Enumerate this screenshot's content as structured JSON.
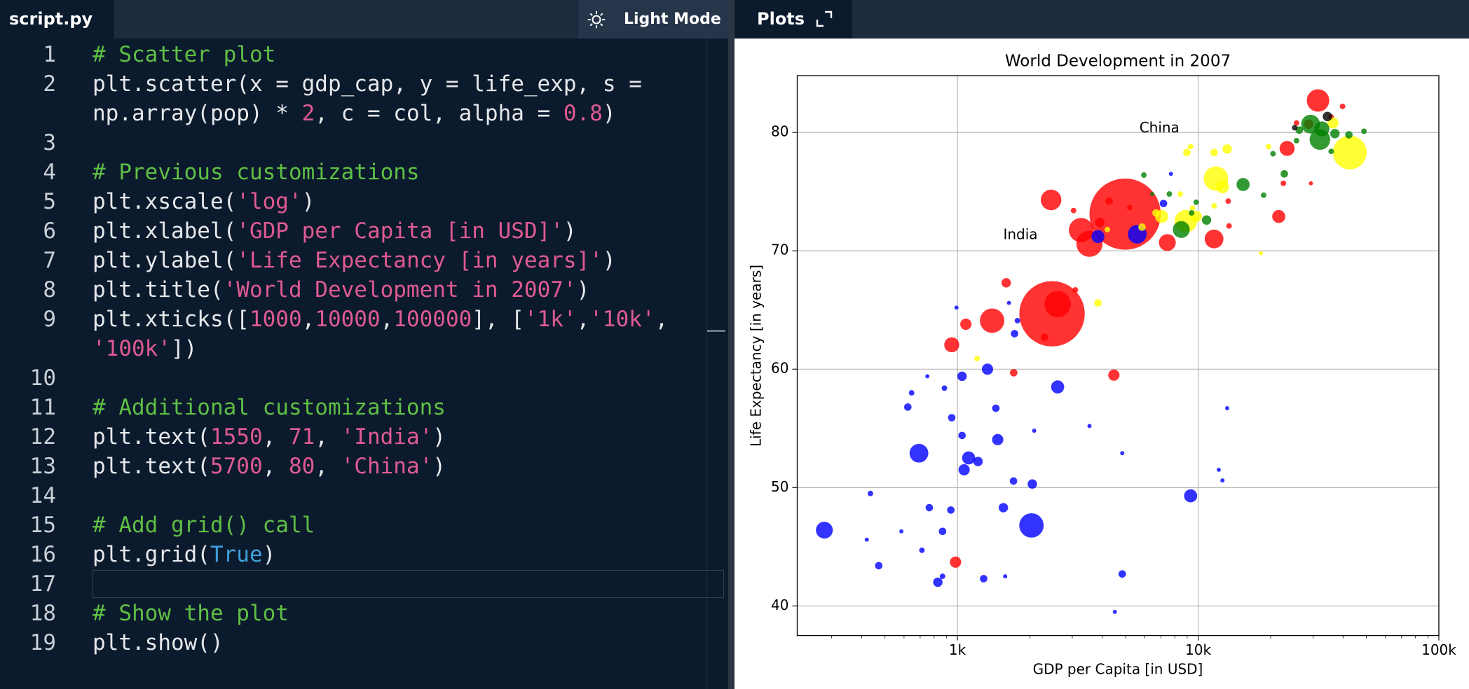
{
  "editor": {
    "tab": "script.py",
    "mode_button": "Light Mode",
    "current_line": 17,
    "token_colors": {
      "plain": "#e6e8eb",
      "comment": "#5fbf45",
      "number": "#de5b93",
      "string": "#de5b93",
      "keyword": "#3f9fdc"
    },
    "lines": [
      {
        "number": 1,
        "rows": [
          [
            {
              "text": "# Scatter plot",
              "kind": "comment"
            }
          ]
        ]
      },
      {
        "number": 2,
        "rows": [
          [
            {
              "text": "plt.scatter(x = gdp_cap, y = life_exp, s =",
              "kind": "plain"
            }
          ],
          [
            {
              "text": "np.array(pop) * ",
              "kind": "plain"
            },
            {
              "text": "2",
              "kind": "number"
            },
            {
              "text": ", c = col, alpha = ",
              "kind": "plain"
            },
            {
              "text": "0.8",
              "kind": "number"
            },
            {
              "text": ")",
              "kind": "plain"
            }
          ]
        ]
      },
      {
        "number": 3,
        "rows": [
          []
        ]
      },
      {
        "number": 4,
        "rows": [
          [
            {
              "text": "# Previous customizations",
              "kind": "comment"
            }
          ]
        ]
      },
      {
        "number": 5,
        "rows": [
          [
            {
              "text": "plt.xscale(",
              "kind": "plain"
            },
            {
              "text": "'log'",
              "kind": "string"
            },
            {
              "text": ")",
              "kind": "plain"
            }
          ]
        ]
      },
      {
        "number": 6,
        "rows": [
          [
            {
              "text": "plt.xlabel(",
              "kind": "plain"
            },
            {
              "text": "'GDP per Capita [in USD]'",
              "kind": "string"
            },
            {
              "text": ")",
              "kind": "plain"
            }
          ]
        ]
      },
      {
        "number": 7,
        "rows": [
          [
            {
              "text": "plt.ylabel(",
              "kind": "plain"
            },
            {
              "text": "'Life Expectancy [in years]'",
              "kind": "string"
            },
            {
              "text": ")",
              "kind": "plain"
            }
          ]
        ]
      },
      {
        "number": 8,
        "rows": [
          [
            {
              "text": "plt.title(",
              "kind": "plain"
            },
            {
              "text": "'World Development in 2007'",
              "kind": "string"
            },
            {
              "text": ")",
              "kind": "plain"
            }
          ]
        ]
      },
      {
        "number": 9,
        "rows": [
          [
            {
              "text": "plt.xticks([",
              "kind": "plain"
            },
            {
              "text": "1000",
              "kind": "number"
            },
            {
              "text": ",",
              "kind": "plain"
            },
            {
              "text": "10000",
              "kind": "number"
            },
            {
              "text": ",",
              "kind": "plain"
            },
            {
              "text": "100000",
              "kind": "number"
            },
            {
              "text": "], [",
              "kind": "plain"
            },
            {
              "text": "'1k'",
              "kind": "string"
            },
            {
              "text": ",",
              "kind": "plain"
            },
            {
              "text": "'10k'",
              "kind": "string"
            },
            {
              "text": ",",
              "kind": "plain"
            }
          ],
          [
            {
              "text": "'100k'",
              "kind": "string"
            },
            {
              "text": "])",
              "kind": "plain"
            }
          ]
        ]
      },
      {
        "number": 10,
        "rows": [
          []
        ]
      },
      {
        "number": 11,
        "rows": [
          [
            {
              "text": "# Additional customizations",
              "kind": "comment"
            }
          ]
        ]
      },
      {
        "number": 12,
        "rows": [
          [
            {
              "text": "plt.text(",
              "kind": "plain"
            },
            {
              "text": "1550",
              "kind": "number"
            },
            {
              "text": ", ",
              "kind": "plain"
            },
            {
              "text": "71",
              "kind": "number"
            },
            {
              "text": ", ",
              "kind": "plain"
            },
            {
              "text": "'India'",
              "kind": "string"
            },
            {
              "text": ")",
              "kind": "plain"
            }
          ]
        ]
      },
      {
        "number": 13,
        "rows": [
          [
            {
              "text": "plt.text(",
              "kind": "plain"
            },
            {
              "text": "5700",
              "kind": "number"
            },
            {
              "text": ", ",
              "kind": "plain"
            },
            {
              "text": "80",
              "kind": "number"
            },
            {
              "text": ", ",
              "kind": "plain"
            },
            {
              "text": "'China'",
              "kind": "string"
            },
            {
              "text": ")",
              "kind": "plain"
            }
          ]
        ]
      },
      {
        "number": 14,
        "rows": [
          []
        ]
      },
      {
        "number": 15,
        "rows": [
          [
            {
              "text": "# Add grid() call",
              "kind": "comment"
            }
          ]
        ]
      },
      {
        "number": 16,
        "rows": [
          [
            {
              "text": "plt.grid(",
              "kind": "plain"
            },
            {
              "text": "True",
              "kind": "keyword"
            },
            {
              "text": ")",
              "kind": "plain"
            }
          ]
        ]
      },
      {
        "number": 17,
        "rows": [
          []
        ]
      },
      {
        "number": 18,
        "rows": [
          [
            {
              "text": "# Show the plot",
              "kind": "comment"
            }
          ]
        ]
      },
      {
        "number": 19,
        "rows": [
          [
            {
              "text": "plt.show()",
              "kind": "plain"
            }
          ]
        ]
      }
    ]
  },
  "plots_tab": "Plots",
  "chart_data": {
    "type": "scatter",
    "title": "World Development in 2007",
    "x_label": "GDP per Capita [in USD]",
    "y_label": "Life Expectancy [in years]",
    "xscale": "log",
    "xlim": [
      216,
      100000
    ],
    "ylim": [
      37.5,
      84.8
    ],
    "xticks": [
      {
        "value": 1000,
        "label": "1k"
      },
      {
        "value": 10000,
        "label": "10k"
      },
      {
        "value": 100000,
        "label": "100k"
      }
    ],
    "xminorticks": [
      300,
      400,
      500,
      600,
      700,
      800,
      900,
      2000,
      3000,
      4000,
      5000,
      6000,
      7000,
      8000,
      9000,
      20000,
      30000,
      40000,
      50000,
      60000,
      70000,
      80000,
      90000
    ],
    "yticks": [
      40,
      50,
      60,
      70,
      80
    ],
    "grid": true,
    "alpha": 0.8,
    "annotations": [
      {
        "text": "India",
        "x": 1550,
        "y": 71
      },
      {
        "text": "China",
        "x": 5700,
        "y": 80
      }
    ],
    "series": [
      {
        "color": "red",
        "x": [
          4972,
          2472,
          2608,
          1393,
          3537,
          3263,
          2449,
          7447,
          11643,
          21620,
          23420,
          31480,
          28780,
          39800,
          25620,
          1084,
          947,
          1594,
          1713,
          4467,
          982,
          4266,
          3901,
          5200,
          3037,
          2301,
          3090,
          13440,
          35700,
          22600,
          29400,
          13330
        ],
        "values": [
          73.1,
          64.68,
          65.5,
          64.1,
          70.6,
          71.75,
          74.3,
          70.7,
          71.0,
          72.9,
          78.65,
          82.7,
          80.7,
          82.2,
          80.8,
          63.8,
          62.06,
          67.3,
          59.7,
          59.5,
          43.7,
          74.2,
          72.4,
          73.65,
          73.4,
          62.7,
          66.7,
          72.1,
          81.3,
          75.7,
          75.7,
          74.2
        ],
        "sizes": [
          2636,
          2220,
          358,
          309,
          358,
          309,
          221,
          148,
          183,
          89,
          117,
          263,
          46,
          16,
          16,
          66,
          117,
          46,
          29,
          66,
          66,
          29,
          46,
          16,
          16,
          29,
          16,
          16,
          16,
          16,
          9,
          16
        ]
      },
      {
        "color": "blue",
        "x": [
          5585,
          3835,
          2030,
          692,
          280,
          2608,
          9306,
          1470,
          1113,
          1066,
          1218,
          1333,
          1045,
          1045,
          947,
          622,
          645,
          883,
          750,
          1444,
          1710,
          2047,
          1552,
          939,
          764,
          435,
          867,
          585,
          712,
          420,
          471,
          1285,
          829,
          867,
          1579,
          4838,
          4508,
          3537,
          4838,
          2084,
          13200,
          12180,
          12620,
          991,
          1775,
          1727,
          7178,
          7708,
          1637
        ],
        "values": [
          71.4,
          71.2,
          46.8,
          52.9,
          46.4,
          58.5,
          49.3,
          54.05,
          52.5,
          51.5,
          52.2,
          60.0,
          59.4,
          54.4,
          55.9,
          56.8,
          58.0,
          58.4,
          59.4,
          56.7,
          50.55,
          50.3,
          48.3,
          48.1,
          48.3,
          49.5,
          46.3,
          46.3,
          44.7,
          45.6,
          43.4,
          42.3,
          42.0,
          42.5,
          42.5,
          42.7,
          39.5,
          55.2,
          52.9,
          54.8,
          56.7,
          51.5,
          50.6,
          65.2,
          64.1,
          63.0,
          74.0,
          76.5,
          65.6
        ],
        "sizes": [
          183,
          89,
          309,
          183,
          148,
          89,
          89,
          66,
          89,
          66,
          46,
          66,
          46,
          29,
          29,
          29,
          16,
          16,
          9,
          29,
          29,
          46,
          46,
          29,
          29,
          16,
          29,
          9,
          16,
          9,
          29,
          29,
          46,
          16,
          9,
          29,
          9,
          9,
          9,
          9,
          9,
          9,
          9,
          9,
          16,
          29,
          29,
          9,
          9
        ]
      },
      {
        "color": "yellow",
        "x": [
          42660,
          11860,
          8892,
          12620,
          7050,
          9817,
          13200,
          36320,
          11650,
          8980,
          9306,
          3835,
          1206,
          5845,
          4195,
          6682,
          8435,
          11650,
          19590,
          18240,
          9480
        ],
        "values": [
          78.3,
          76.1,
          72.5,
          75.4,
          72.9,
          72.9,
          78.6,
          80.8,
          78.3,
          78.3,
          78.8,
          65.6,
          60.9,
          72.0,
          71.8,
          73.2,
          74.8,
          73.8,
          78.8,
          69.8,
          73.6
        ],
        "sizes": [
          592,
          309,
          263,
          89,
          89,
          66,
          46,
          66,
          29,
          29,
          16,
          29,
          16,
          29,
          16,
          29,
          16,
          16,
          16,
          9,
          16
        ]
      },
      {
        "color": "green",
        "x": [
          29310,
          32060,
          32660,
          37000,
          15370,
          8510,
          10840,
          18710,
          22800,
          20470,
          9817,
          7590,
          6448,
          5950,
          25620,
          35700,
          48850,
          42300,
          26300,
          9390
        ],
        "values": [
          80.7,
          79.4,
          80.3,
          79.9,
          75.6,
          71.8,
          72.6,
          74.7,
          76.5,
          78.2,
          74.1,
          74.8,
          74.8,
          76.4,
          79.3,
          78.4,
          80.1,
          79.8,
          80.2,
          73.2
        ],
        "sizes": [
          183,
          221,
          117,
          46,
          89,
          148,
          46,
          16,
          29,
          16,
          16,
          16,
          9,
          16,
          16,
          16,
          16,
          29,
          29,
          16
        ]
      },
      {
        "color": "black",
        "x": [
          34440,
          25180
        ],
        "values": [
          81.35,
          80.4
        ],
        "sizes": [
          46,
          16
        ]
      }
    ]
  }
}
